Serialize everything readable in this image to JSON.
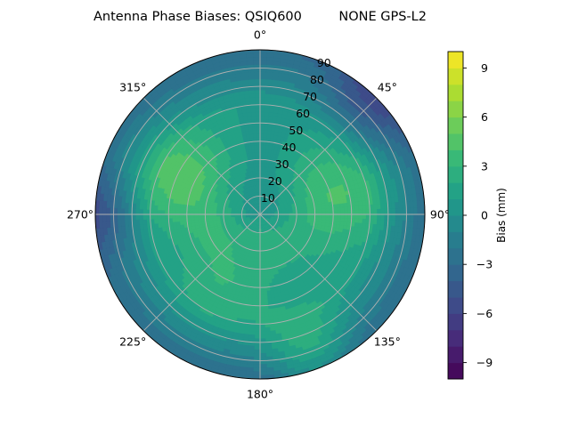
{
  "chart_data": {
    "type": "heatmap",
    "title": "Antenna Phase Biases: QSIQ600         NONE GPS-L2",
    "projection": "polar",
    "theta_zero": "north",
    "theta_direction": "clockwise",
    "angle_ticks": [
      "0°",
      "45°",
      "90°",
      "135°",
      "180°",
      "225°",
      "270°",
      "315°"
    ],
    "angle_values": [
      0,
      45,
      90,
      135,
      180,
      225,
      270,
      315
    ],
    "radial_ticks": [
      "10",
      "20",
      "30",
      "40",
      "50",
      "60",
      "70",
      "80",
      "90"
    ],
    "radial_values": [
      10,
      20,
      30,
      40,
      50,
      60,
      70,
      80,
      90
    ],
    "rlim": [
      0,
      90
    ],
    "grid": true,
    "colormap": "viridis",
    "colorbar": {
      "label": "Bias (mm)",
      "range": [
        -10,
        10
      ],
      "levels": 20,
      "tick_values": [
        -9,
        -6,
        -3,
        0,
        3,
        6,
        9
      ],
      "tick_labels": [
        "−9",
        "−6",
        "−3",
        "0",
        "3",
        "6",
        "9"
      ]
    },
    "field": {
      "base_value": 1.0,
      "edge_falloff": {
        "start_zenith": 60,
        "end_zenith": 90,
        "drop": 4.0
      },
      "blobs": [
        {
          "azimuth": 295,
          "zenith": 48,
          "width": 20,
          "value": 3.8
        },
        {
          "azimuth": 75,
          "zenith": 45,
          "width": 22,
          "value": 3.2
        },
        {
          "azimuth": 160,
          "zenith": 80,
          "width": 16,
          "value": 3.5
        },
        {
          "azimuth": 210,
          "zenith": 40,
          "width": 20,
          "value": 2.0
        },
        {
          "azimuth": 0,
          "zenith": 15,
          "width": 18,
          "value": -2.0
        },
        {
          "azimuth": 45,
          "zenith": 85,
          "width": 18,
          "value": -3.0
        },
        {
          "azimuth": 270,
          "zenith": 90,
          "width": 15,
          "value": -2.5
        }
      ]
    }
  }
}
